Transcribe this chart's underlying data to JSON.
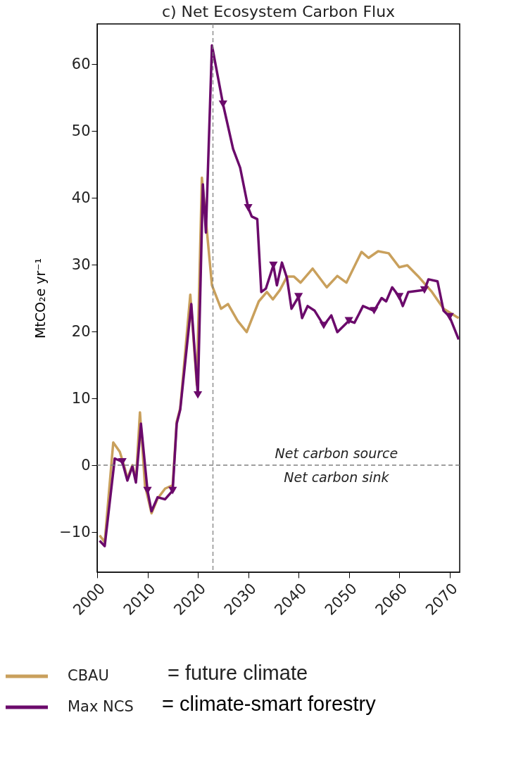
{
  "chart_data": {
    "type": "line",
    "title": "c) Net Ecosystem Carbon Flux",
    "ylabel": "MtCO₂e yr⁻¹",
    "xlim": [
      2000,
      2072
    ],
    "ylim": [
      -16,
      66
    ],
    "xticks": [
      2000,
      2010,
      2020,
      2030,
      2040,
      2050,
      2060,
      2070
    ],
    "yticks": [
      -10,
      0,
      10,
      20,
      30,
      40,
      50,
      60
    ],
    "grid": false,
    "legend": "bottom",
    "series": [
      {
        "name": "CBAU",
        "color": "#c9a05c",
        "line_style": "solid",
        "x": [
          2000.5,
          2001.5,
          2003.2,
          2004.5,
          2005.5,
          2006,
          2007,
          2007.7,
          2008.5,
          2009.5,
          2010.8,
          2012,
          2013.5,
          2015,
          2015.8,
          2016.5,
          2018.5,
          2019.8,
          2020.8,
          2021.8,
          2022.8,
          2024.6,
          2026,
          2027.9,
          2029.7,
          2032.1,
          2033.7,
          2034.9,
          2036.3,
          2037.7,
          2039.1,
          2040.4,
          2042.8,
          2045.6,
          2047.7,
          2049.5,
          2052.5,
          2053.9,
          2055.8,
          2057.9,
          2060,
          2061.6,
          2063.7,
          2066.5,
          2068.8,
          2071.8
        ],
        "values": [
          -10.5,
          -11.5,
          3.4,
          2,
          -0.5,
          -2,
          0,
          -2.3,
          7.9,
          -3,
          -7.2,
          -5,
          -3.5,
          -3,
          6.5,
          8.5,
          25.5,
          12,
          43,
          35,
          26.9,
          23.4,
          24.1,
          21.6,
          19.9,
          24.5,
          25.9,
          24.8,
          26.2,
          28.2,
          28.2,
          27.3,
          29.4,
          26.6,
          28.3,
          27.3,
          31.9,
          31,
          32,
          31.7,
          29.6,
          29.9,
          28.3,
          25.9,
          23.4,
          22
        ]
      },
      {
        "name": "Max NCS",
        "color": "#6b0a6b",
        "line_style": "solid",
        "x": [
          2000.5,
          2001.5,
          2003.5,
          2005,
          2006,
          2007,
          2007.7,
          2008.7,
          2010,
          2010.8,
          2012,
          2013.5,
          2015,
          2015.8,
          2016.5,
          2018.7,
          2020,
          2021,
          2021.6,
          2022.8,
          2025,
          2027,
          2028.4,
          2030,
          2030.7,
          2031.8,
          2032.6,
          2033.5,
          2035,
          2035.7,
          2036.7,
          2037.7,
          2038.6,
          2040,
          2040.7,
          2041.8,
          2043.2,
          2045,
          2046.5,
          2047.7,
          2050,
          2051.1,
          2052.8,
          2055,
          2056.5,
          2057.4,
          2058.6,
          2060,
          2060.7,
          2061.8,
          2065,
          2065.8,
          2067.6,
          2068.8,
          2070,
          2071.8
        ],
        "values": [
          -11.3,
          -12.1,
          1,
          0.5,
          -2.3,
          -0.2,
          -2.6,
          6.2,
          -3.8,
          -6.9,
          -4.8,
          -5.1,
          -3.8,
          6.2,
          8.3,
          24.1,
          10.5,
          42,
          34.8,
          62.8,
          54,
          47.3,
          44.5,
          38.5,
          37.2,
          36.8,
          25.9,
          26.4,
          29.9,
          26.9,
          30.3,
          28,
          23.4,
          25.2,
          22,
          23.8,
          23.1,
          20.9,
          22.4,
          19.9,
          21.6,
          21.3,
          23.8,
          23.1,
          25,
          24.5,
          26.6,
          25.2,
          23.8,
          25.9,
          26.2,
          27.8,
          27.5,
          23.1,
          22.2,
          18.8
        ]
      },
      {
        "color": "#6b0a6b",
        "type": "scatter",
        "marker": "triangle",
        "x": [
          2005,
          2010,
          2015,
          2020,
          2025,
          2030,
          2035,
          2040,
          2045,
          2050,
          2055,
          2060,
          2065,
          2070
        ],
        "values": [
          0.5,
          -3.8,
          -3.8,
          10.5,
          54,
          38.5,
          29.9,
          25.2,
          20.9,
          21.6,
          23.1,
          25.2,
          26.2,
          22.2
        ]
      }
    ],
    "ref_lines": [
      {
        "axis": "y",
        "value": 0,
        "color": "#808080",
        "line_style": "dashed"
      },
      {
        "axis": "x",
        "value": 2023,
        "color": "#808080",
        "line_style": "dashed"
      }
    ],
    "annotations": [
      "Net carbon source",
      "Net carbon sink",
      "= future climate",
      "= climate-smart forestry"
    ]
  }
}
